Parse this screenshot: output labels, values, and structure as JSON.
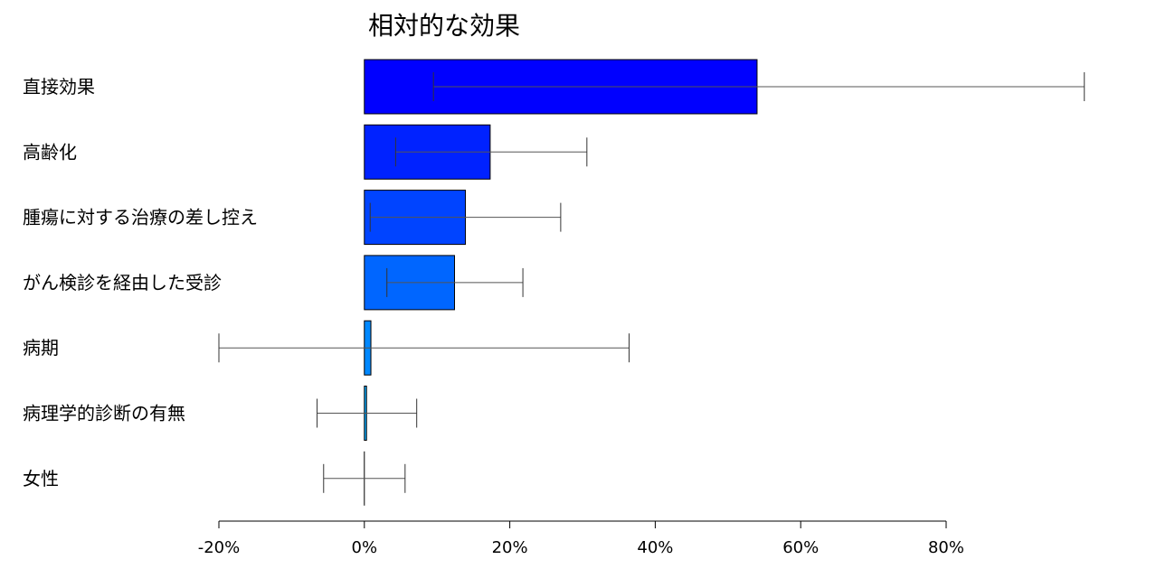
{
  "chart_data": {
    "type": "bar",
    "orientation": "horizontal",
    "title": "相対的な効果",
    "xlabel": "",
    "ylabel": "",
    "xlim": [
      -20,
      80
    ],
    "x_ticks": [
      -20,
      0,
      20,
      40,
      60,
      80
    ],
    "x_tick_labels": [
      "-20%",
      "0%",
      "20%",
      "40%",
      "60%",
      "80%"
    ],
    "grid": false,
    "categories": [
      "直接効果",
      "高齢化",
      "腫瘍に対する治療の差し控え",
      "がん検診を経由した受診",
      "病期",
      "病理学的診断の有無",
      "女性"
    ],
    "values": [
      54.0,
      17.3,
      13.9,
      12.4,
      0.9,
      0.3,
      0.0
    ],
    "error_low": [
      9.5,
      4.3,
      0.8,
      3.1,
      -20.0,
      -6.5,
      -5.6
    ],
    "error_high": [
      99.0,
      30.6,
      27.0,
      21.8,
      36.4,
      7.2,
      5.6
    ],
    "bar_colors": [
      "#0000FF",
      "#0022FF",
      "#0044FF",
      "#0066FF",
      "#0088FF",
      "#00AAFF",
      "#00CCFF"
    ]
  }
}
